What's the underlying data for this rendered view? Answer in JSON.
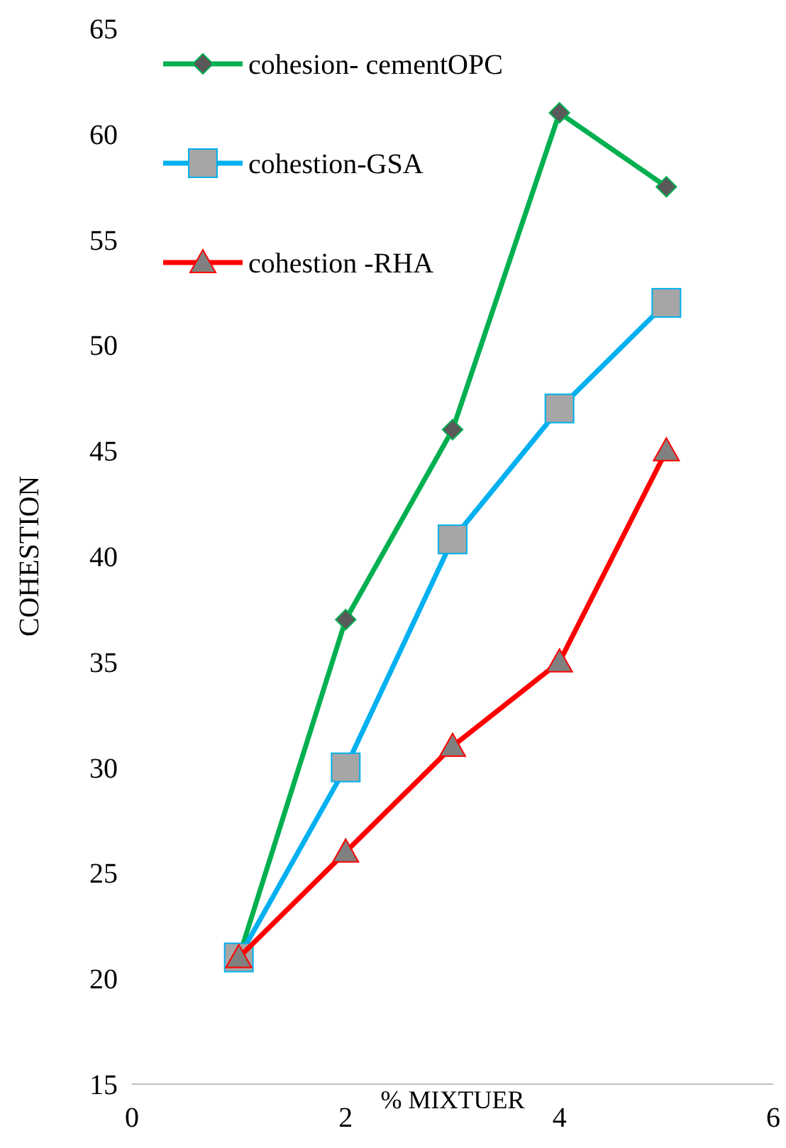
{
  "chart_data": {
    "type": "line",
    "xlabel": "% MIXTUER",
    "ylabel": "COHESTION",
    "x": [
      1,
      2,
      3,
      4,
      5
    ],
    "xlim": [
      0,
      6
    ],
    "xticks": [
      0,
      2,
      4,
      6
    ],
    "ylim": [
      15,
      65
    ],
    "yticks": [
      15,
      20,
      25,
      30,
      35,
      40,
      45,
      50,
      55,
      60,
      65
    ],
    "grid": false,
    "legend": "top left",
    "series": [
      {
        "name": "cohesion- cementOPC",
        "color": "#00b050",
        "marker": "diamond",
        "values": [
          21,
          37,
          46,
          61,
          57.5
        ]
      },
      {
        "name": "cohestion-GSA",
        "color": "#00b0f0",
        "marker": "square",
        "values": [
          21,
          30,
          40.8,
          47,
          52
        ]
      },
      {
        "name": "cohestion -RHA",
        "color": "#ff0000",
        "marker": "triangle",
        "values": [
          21,
          26,
          31,
          35,
          45
        ]
      }
    ]
  }
}
